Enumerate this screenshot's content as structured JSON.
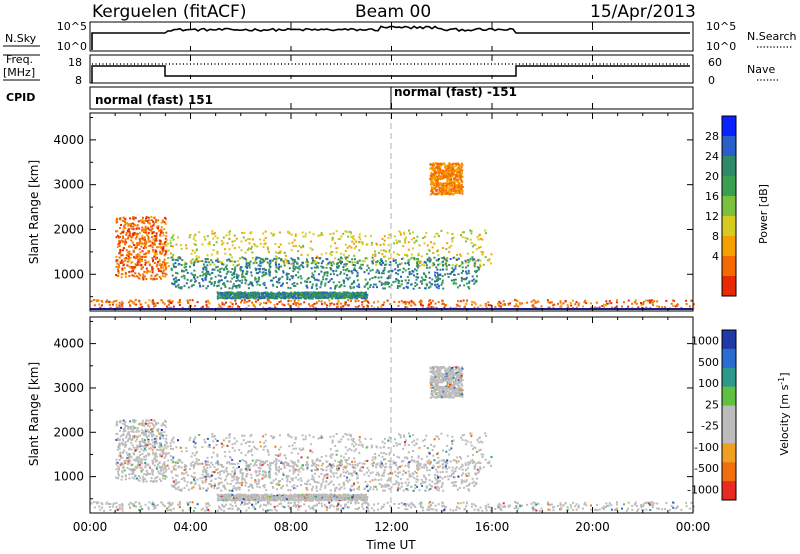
{
  "header": {
    "station": "Kerguelen (fitACF)",
    "beam": "Beam 00",
    "date": "15/Apr/2013"
  },
  "nsky_panel": {
    "left_label": "N.Sky",
    "right_label": "N.Search",
    "left_ticks": [
      "10^5",
      "10^0"
    ],
    "right_ticks": [
      "10^5",
      "10^0"
    ]
  },
  "freq_panel": {
    "left_label_1": "Freq.",
    "left_label_2": "[MHz]",
    "left_ticks": [
      "18",
      "8"
    ],
    "right_label": "Nave",
    "right_ticks": [
      "60",
      "0"
    ]
  },
  "cpid_panel": {
    "label": "CPID",
    "modes": [
      "normal (fast) 151",
      "normal (fast) -151"
    ]
  },
  "chart_data": [
    {
      "type": "heatmap",
      "name": "power",
      "ylabel": "Slant Range [km]",
      "xlabel": "Time UT",
      "x_range_hours": [
        0,
        24
      ],
      "ylim": [
        180,
        4600
      ],
      "y_ticks": [
        1000,
        2000,
        3000,
        4000
      ],
      "colorbar_label": "Power [dB]",
      "colorbar_ticks": [
        4,
        8,
        12,
        16,
        20,
        24,
        28
      ],
      "colorbar_colors": [
        "#0a22ff",
        "#2a5ec8",
        "#2f8a6a",
        "#3aa050",
        "#7cc040",
        "#d6cc20",
        "#f5a000",
        "#f56a00",
        "#e82a00"
      ],
      "scatter_regions_hours_km": [
        {
          "t": [
            1.0,
            3.0
          ],
          "r": [
            900,
            2300
          ],
          "level": 4
        },
        {
          "t": [
            3.0,
            16.0
          ],
          "r": [
            1200,
            2000
          ],
          "level": 12
        },
        {
          "t": [
            3.2,
            15.5
          ],
          "r": [
            700,
            1400
          ],
          "level": 24
        },
        {
          "t": [
            5.0,
            11.0
          ],
          "r": [
            480,
            620
          ],
          "level": 24
        },
        {
          "t": [
            13.5,
            14.8
          ],
          "r": [
            2800,
            3500
          ],
          "level": 6
        },
        {
          "t": [
            0.0,
            24.0
          ],
          "r": [
            250,
            450
          ],
          "level": 4
        }
      ]
    },
    {
      "type": "heatmap",
      "name": "velocity",
      "ylabel": "Slant Range [km]",
      "xlabel": "Time UT",
      "x_range_hours": [
        0,
        24
      ],
      "ylim": [
        180,
        4600
      ],
      "y_ticks": [
        1000,
        2000,
        3000,
        4000
      ],
      "colorbar_label": "Velocity [m s^-1]",
      "colorbar_ticks": [
        "1000",
        "500",
        "100",
        "25",
        "-25",
        "-100",
        "-500",
        "-1000"
      ],
      "colorbar_colors": [
        "#1f3aa8",
        "#2a6cd0",
        "#2b9a8a",
        "#60c040",
        "#bcbcbc",
        "#bcbcbc",
        "#f0a020",
        "#f07010",
        "#e82a20"
      ]
    }
  ],
  "x_axis": {
    "ticks": [
      "00:00",
      "04:00",
      "08:00",
      "12:00",
      "16:00",
      "20:00",
      "00:00"
    ],
    "label": "Time UT"
  },
  "colors": {
    "frame": "#000000",
    "dashed_marker": "#b0b0b0",
    "quiet_velocity": "#bcbcbc"
  }
}
